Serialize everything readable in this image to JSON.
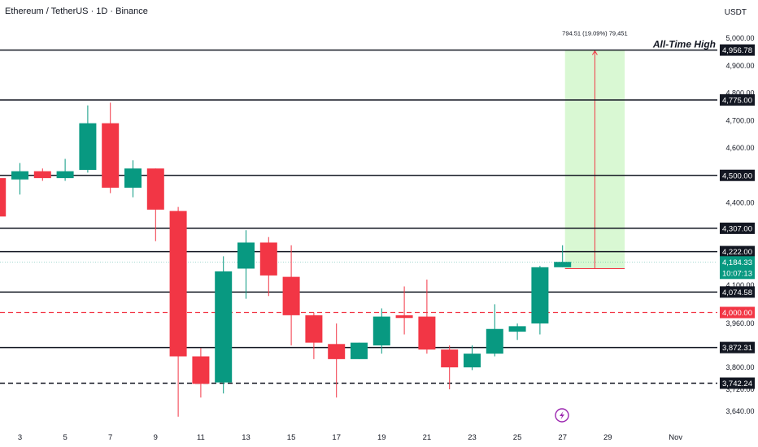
{
  "header": {
    "title": "Ethereum / TetherUS · 1D · Binance",
    "currency": "USDT"
  },
  "colors": {
    "up": "#089981",
    "down": "#f23645",
    "ath_zone": "#ccf5c4",
    "dashed_red": "#f23645"
  },
  "chart_data": {
    "type": "candlestick",
    "x_axis": {
      "ticks": [
        {
          "day": 3,
          "label": "3"
        },
        {
          "day": 5,
          "label": "5"
        },
        {
          "day": 7,
          "label": "7"
        },
        {
          "day": 9,
          "label": "9"
        },
        {
          "day": 11,
          "label": "11"
        },
        {
          "day": 13,
          "label": "13"
        },
        {
          "day": 15,
          "label": "15"
        },
        {
          "day": 17,
          "label": "17"
        },
        {
          "day": 19,
          "label": "19"
        },
        {
          "day": 21,
          "label": "21"
        },
        {
          "day": 23,
          "label": "23"
        },
        {
          "day": 25,
          "label": "25"
        },
        {
          "day": 27,
          "label": "27"
        },
        {
          "day": 29,
          "label": "29"
        },
        {
          "day": 32,
          "label": "Nov"
        }
      ]
    },
    "y_axis": {
      "ticks": [
        "3,640.00",
        "3,720.00",
        "3,800.00",
        "3,880.00",
        "3,960.00",
        "4,000.00",
        "4,100.00",
        "4,200.00",
        "4,300.00",
        "4,400.00",
        "4,500.00",
        "4,600.00",
        "4,700.00",
        "4,800.00",
        "4,900.00",
        "5,000.00"
      ],
      "ylim": [
        3620,
        5020
      ]
    },
    "candles": [
      {
        "day": 2,
        "open": 4490,
        "high": 4520,
        "low": 4350,
        "close": 4350
      },
      {
        "day": 3,
        "open": 4485,
        "high": 4545,
        "low": 4430,
        "close": 4515
      },
      {
        "day": 4,
        "open": 4515,
        "high": 4525,
        "low": 4480,
        "close": 4490
      },
      {
        "day": 5,
        "open": 4490,
        "high": 4560,
        "low": 4480,
        "close": 4515
      },
      {
        "day": 6,
        "open": 4520,
        "high": 4755,
        "low": 4510,
        "close": 4690
      },
      {
        "day": 7,
        "open": 4690,
        "high": 4765,
        "low": 4435,
        "close": 4455
      },
      {
        "day": 8,
        "open": 4455,
        "high": 4555,
        "low": 4420,
        "close": 4525
      },
      {
        "day": 9,
        "open": 4525,
        "high": 4525,
        "low": 4260,
        "close": 4375
      },
      {
        "day": 10,
        "open": 4370,
        "high": 4385,
        "low": 3620,
        "close": 3840
      },
      {
        "day": 11,
        "open": 3840,
        "high": 3870,
        "low": 3690,
        "close": 3740
      },
      {
        "day": 12,
        "open": 3745,
        "high": 4205,
        "low": 3705,
        "close": 4150
      },
      {
        "day": 13,
        "open": 4160,
        "high": 4300,
        "low": 4050,
        "close": 4255
      },
      {
        "day": 14,
        "open": 4255,
        "high": 4275,
        "low": 4060,
        "close": 4135
      },
      {
        "day": 15,
        "open": 4130,
        "high": 4245,
        "low": 3880,
        "close": 3990
      },
      {
        "day": 16,
        "open": 3990,
        "high": 4000,
        "low": 3830,
        "close": 3890
      },
      {
        "day": 17,
        "open": 3885,
        "high": 3960,
        "low": 3690,
        "close": 3830
      },
      {
        "day": 18,
        "open": 3830,
        "high": 3890,
        "low": 3830,
        "close": 3890
      },
      {
        "day": 19,
        "open": 3880,
        "high": 4015,
        "low": 3850,
        "close": 3985
      },
      {
        "day": 20,
        "open": 3990,
        "high": 4095,
        "low": 3920,
        "close": 3980
      },
      {
        "day": 21,
        "open": 3985,
        "high": 4120,
        "low": 3850,
        "close": 3865
      },
      {
        "day": 22,
        "open": 3865,
        "high": 3880,
        "low": 3720,
        "close": 3800
      },
      {
        "day": 23,
        "open": 3800,
        "high": 3880,
        "low": 3790,
        "close": 3850
      },
      {
        "day": 24,
        "open": 3850,
        "high": 4030,
        "low": 3840,
        "close": 3940
      },
      {
        "day": 25,
        "open": 3930,
        "high": 3960,
        "low": 3900,
        "close": 3950
      },
      {
        "day": 26,
        "open": 3960,
        "high": 4170,
        "low": 3920,
        "close": 4165
      },
      {
        "day": 27,
        "open": 4165,
        "high": 4245,
        "low": 4165,
        "close": 4184.33
      }
    ],
    "horizontal_levels": [
      {
        "value": 4956.78,
        "label": "4,956.78",
        "style": "solid",
        "annotation": "All-Time High"
      },
      {
        "value": 4775.0,
        "label": "4,775.00",
        "style": "solid"
      },
      {
        "value": 4500.0,
        "label": "4,500.00",
        "style": "solid"
      },
      {
        "value": 4307.0,
        "label": "4,307.00",
        "style": "solid"
      },
      {
        "value": 4222.0,
        "label": "4,222.00",
        "style": "solid"
      },
      {
        "value": 4074.58,
        "label": "4,074.58",
        "style": "solid"
      },
      {
        "value": 4000.0,
        "label": "4,000.00",
        "style": "dashed-red"
      },
      {
        "value": 3872.31,
        "label": "3,872.31",
        "style": "solid"
      },
      {
        "value": 3742.24,
        "label": "3,742.24",
        "style": "dashed"
      }
    ],
    "current_price": {
      "label": "4,184.33",
      "countdown": "10:07:13",
      "value": 4184.33
    },
    "measure_tool": {
      "from_price": 4160,
      "to_price": 4956.78,
      "from_day": 27,
      "to_day": 30,
      "label": "794.51 (19.09%) 79,451"
    }
  }
}
